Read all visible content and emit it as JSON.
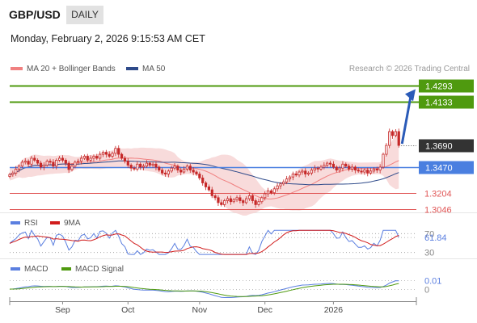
{
  "header": {
    "symbol": "GBP/USD",
    "timeframe": "DAILY",
    "datetime": "Monday, February 2, 2026 9:15:53 AM CET"
  },
  "legend": {
    "ma20": "MA 20 + Bollinger Bands",
    "ma50": "MA 50",
    "credit": "Research © 2026 Trading Central",
    "rsi": "RSI",
    "rsi_ma": "9MA",
    "macd": "MACD",
    "macd_signal": "MACD Signal"
  },
  "colors": {
    "ma20": "#f08080",
    "ma50": "#2e4a8a",
    "bands": "#f6cfcf",
    "candle": "#c62828",
    "target": "#4f9a0f",
    "pivot": "#4a7fe0",
    "support": "#e05555",
    "last": "#333333",
    "arrow": "#2b5bb8",
    "rsi": "#5b7fe0",
    "rsi_ma": "#d11c1c",
    "macd": "#5b7fe0",
    "macd_signal": "#4f9a0f"
  },
  "chart_data": [
    {
      "type": "candlestick",
      "panel": "price",
      "instrument": "GBP/USD",
      "timeframe": "DAILY",
      "x_labels": [
        "Sep",
        "Oct",
        "Nov",
        "Dec",
        "2026"
      ],
      "price_levels": [
        {
          "label": "1.4293",
          "value": 1.4293,
          "role": "target"
        },
        {
          "label": "1.4133",
          "value": 1.4133,
          "role": "target"
        },
        {
          "label": "1.3690",
          "value": 1.369,
          "role": "last"
        },
        {
          "label": "1.3470",
          "value": 1.347,
          "role": "pivot"
        },
        {
          "label": "1.3204",
          "value": 1.3204,
          "role": "support"
        },
        {
          "label": "1.3046",
          "value": 1.3046,
          "role": "support"
        }
      ],
      "ylim": [
        1.2995,
        1.4345
      ],
      "close": [
        1.3395,
        1.341,
        1.345,
        1.348,
        1.352,
        1.353,
        1.35,
        1.356,
        1.354,
        1.351,
        1.347,
        1.349,
        1.353,
        1.352,
        1.348,
        1.354,
        1.356,
        1.354,
        1.351,
        1.3445,
        1.348,
        1.352,
        1.353,
        1.356,
        1.358,
        1.354,
        1.356,
        1.358,
        1.356,
        1.36,
        1.362,
        1.36,
        1.358,
        1.361,
        1.366,
        1.36,
        1.356,
        1.353,
        1.349,
        1.346,
        1.345,
        1.35,
        1.347,
        1.348,
        1.351,
        1.349,
        1.35,
        1.347,
        1.344,
        1.341,
        1.34,
        1.343,
        1.346,
        1.348,
        1.344,
        1.342,
        1.345,
        1.348,
        1.344,
        1.342,
        1.34,
        1.336,
        1.331,
        1.327,
        1.324,
        1.318,
        1.316,
        1.311,
        1.309,
        1.313,
        1.315,
        1.312,
        1.314,
        1.316,
        1.313,
        1.311,
        1.315,
        1.318,
        1.313,
        1.309,
        1.312,
        1.316,
        1.32,
        1.323,
        1.321,
        1.325,
        1.328,
        1.33,
        1.332,
        1.335,
        1.337,
        1.34,
        1.339,
        1.342,
        1.343,
        1.34,
        1.341,
        1.344,
        1.346,
        1.345,
        1.347,
        1.349,
        1.351,
        1.35,
        1.347,
        1.344,
        1.346,
        1.35,
        1.348,
        1.345,
        1.347,
        1.344,
        1.343,
        1.342,
        1.344,
        1.341,
        1.343,
        1.345,
        1.344,
        1.347,
        1.36,
        1.369,
        1.383,
        1.379,
        1.383,
        1.369
      ]
    },
    {
      "type": "line",
      "panel": "RSI",
      "series": [
        {
          "name": "RSI"
        },
        {
          "name": "9MA"
        }
      ],
      "y_labels": [
        "70",
        "61.84",
        "30"
      ],
      "last_value": 61.84
    },
    {
      "type": "line",
      "panel": "MACD",
      "series": [
        {
          "name": "MACD"
        },
        {
          "name": "MACD Signal"
        }
      ],
      "y_labels": [
        "0.01",
        "0"
      ],
      "last_value": 0.01
    }
  ]
}
